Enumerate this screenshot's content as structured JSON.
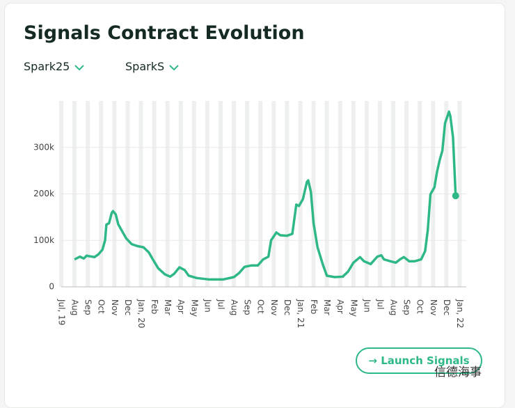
{
  "header": {
    "title": "Signals Contract Evolution",
    "filters": [
      "Spark25",
      "SparkS"
    ]
  },
  "button": "Launch Signals",
  "watermark": "信德海事",
  "chart_data": {
    "type": "line",
    "color": "#2eb886",
    "grid": true,
    "xlim": [
      0,
      30.5
    ],
    "ylim": [
      0,
      400000
    ],
    "xticks": [
      {
        "value": 0,
        "label": "Jul, 19"
      },
      {
        "value": 1,
        "label": "Aug"
      },
      {
        "value": 2,
        "label": "Sep"
      },
      {
        "value": 3,
        "label": "Oct"
      },
      {
        "value": 4,
        "label": "Nov"
      },
      {
        "value": 5,
        "label": "Dec"
      },
      {
        "value": 6,
        "label": "Jan, 20"
      },
      {
        "value": 7,
        "label": "Feb"
      },
      {
        "value": 8,
        "label": "Mar"
      },
      {
        "value": 9,
        "label": "Apr"
      },
      {
        "value": 10,
        "label": "May"
      },
      {
        "value": 11,
        "label": "Jun"
      },
      {
        "value": 12,
        "label": "Jul"
      },
      {
        "value": 13,
        "label": "Aug"
      },
      {
        "value": 14,
        "label": "Sep"
      },
      {
        "value": 15,
        "label": "Oct"
      },
      {
        "value": 16,
        "label": "Nov"
      },
      {
        "value": 17,
        "label": "Dec"
      },
      {
        "value": 18,
        "label": "Jan, 21"
      },
      {
        "value": 19,
        "label": "Feb"
      },
      {
        "value": 20,
        "label": "Mar"
      },
      {
        "value": 21,
        "label": "Apr"
      },
      {
        "value": 22,
        "label": "May"
      },
      {
        "value": 23,
        "label": "Jun"
      },
      {
        "value": 24,
        "label": "Jul"
      },
      {
        "value": 25,
        "label": "Aug"
      },
      {
        "value": 26,
        "label": "Sep"
      },
      {
        "value": 27,
        "label": "Oct"
      },
      {
        "value": 28,
        "label": "Nov"
      },
      {
        "value": 29,
        "label": "Dec"
      },
      {
        "value": 30,
        "label": "Jan, 22"
      }
    ],
    "yticks": [
      0,
      {
        "value": 100000,
        "label": "100k"
      },
      {
        "value": 200000,
        "label": "200k"
      },
      {
        "value": 300000,
        "label": "300k"
      }
    ],
    "x": [
      1.0,
      1.4,
      1.7,
      1.9,
      2.5,
      2.8,
      3.1,
      3.3,
      3.4,
      3.6,
      3.8,
      3.9,
      4.1,
      4.3,
      4.6,
      4.9,
      5.3,
      5.7,
      6.2,
      6.6,
      6.9,
      7.3,
      7.8,
      8.2,
      8.5,
      8.9,
      9.3,
      9.6,
      10.2,
      11.1,
      12.2,
      13.0,
      13.4,
      13.8,
      14.3,
      14.8,
      15.2,
      15.6,
      15.8,
      16.2,
      16.5,
      17.0,
      17.4,
      17.7,
      17.9,
      18.2,
      18.5,
      18.6,
      18.8,
      19.0,
      19.3,
      19.7,
      20.0,
      20.6,
      21.2,
      21.6,
      22.0,
      22.5,
      22.8,
      23.3,
      23.8,
      24.1,
      24.3,
      24.8,
      25.2,
      25.5,
      25.8,
      26.2,
      26.6,
      27.1,
      27.4,
      27.6,
      27.8,
      28.1,
      28.3,
      28.5,
      28.7,
      28.9,
      29.2,
      29.3,
      29.5,
      29.7
    ],
    "values": [
      59000,
      65000,
      61000,
      67000,
      64000,
      70000,
      80000,
      100000,
      134000,
      137000,
      159000,
      163000,
      156000,
      134000,
      119000,
      104000,
      92000,
      88000,
      85000,
      74000,
      59000,
      40000,
      27000,
      22000,
      28000,
      42000,
      36000,
      24000,
      19000,
      16000,
      16000,
      21000,
      30000,
      43000,
      46000,
      46000,
      59000,
      65000,
      100000,
      117000,
      111000,
      110000,
      114000,
      177000,
      174000,
      189000,
      226000,
      229000,
      204000,
      137000,
      85000,
      48000,
      24000,
      21000,
      22000,
      33000,
      52000,
      64000,
      55000,
      49000,
      65000,
      68000,
      59000,
      55000,
      52000,
      59000,
      64000,
      55000,
      55000,
      59000,
      77000,
      122000,
      199000,
      214000,
      248000,
      273000,
      293000,
      352000,
      377000,
      367000,
      322000,
      196000
    ]
  }
}
